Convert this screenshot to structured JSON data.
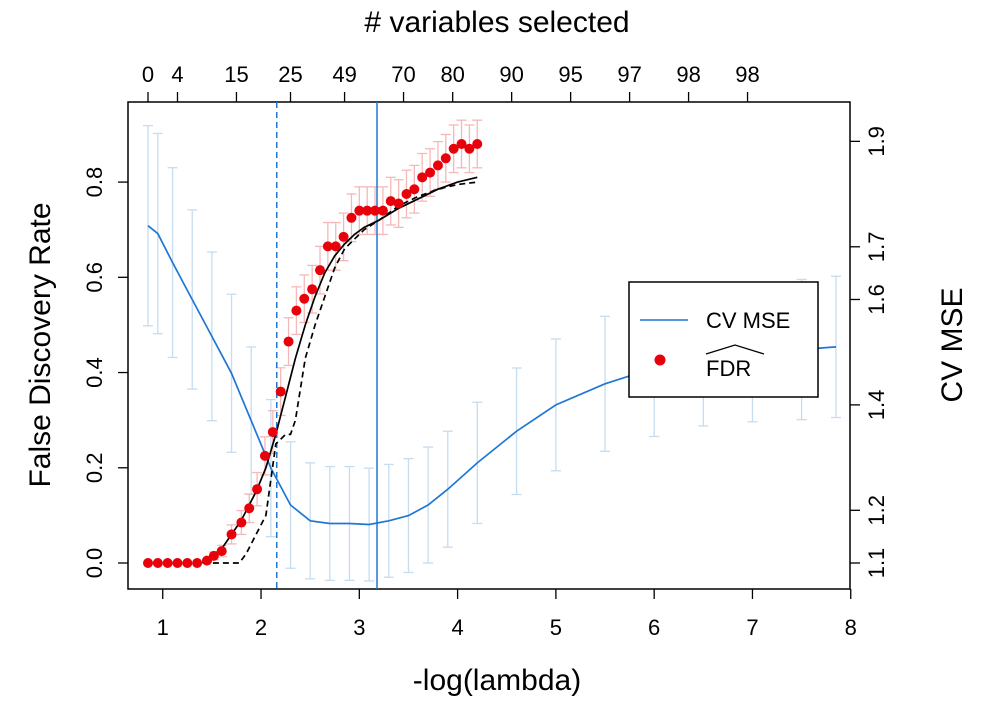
{
  "chart_data": {
    "type": "line",
    "axis_titles": {
      "bottom": "-log(lambda)",
      "top": "# variables selected",
      "left": "False Discovery Rate",
      "right": "CV MSE"
    },
    "x_range": [
      0.85,
      7.85
    ],
    "x_ticks": [
      1,
      2,
      3,
      4,
      5,
      6,
      7,
      8
    ],
    "y_left_range": [
      0.0,
      0.88
    ],
    "y_left_ticks": [
      0.0,
      0.2,
      0.4,
      0.6,
      0.8
    ],
    "y_right_range": [
      1.1,
      1.895
    ],
    "y_right_ticks": [
      1.1,
      1.2,
      1.4,
      1.6,
      1.7,
      1.9
    ],
    "top_ticks": [
      {
        "x": 0.85,
        "label": "0"
      },
      {
        "x": 1.15,
        "label": "4"
      },
      {
        "x": 1.75,
        "label": "15"
      },
      {
        "x": 2.3,
        "label": "25"
      },
      {
        "x": 2.85,
        "label": "49"
      },
      {
        "x": 3.45,
        "label": "70"
      },
      {
        "x": 3.95,
        "label": "80"
      },
      {
        "x": 4.55,
        "label": "90"
      },
      {
        "x": 5.15,
        "label": "95"
      },
      {
        "x": 5.75,
        "label": "97"
      },
      {
        "x": 6.35,
        "label": "98"
      },
      {
        "x": 6.95,
        "label": "98"
      }
    ],
    "vlines": [
      {
        "x": 2.16,
        "style": "dashed"
      },
      {
        "x": 3.18,
        "style": "solid"
      }
    ],
    "legend": {
      "position": "right",
      "entries": [
        {
          "label": "CV MSE",
          "kind": "line"
        },
        {
          "label": "FDR",
          "kind": "point",
          "hat": true
        }
      ]
    },
    "series": [
      {
        "name": "CV MSE",
        "axis": "right",
        "color": "#1f77d4",
        "errbar_color": "#c6dcef",
        "x": [
          0.85,
          0.95,
          1.1,
          1.3,
          1.5,
          1.7,
          1.9,
          2.1,
          2.3,
          2.5,
          2.7,
          2.9,
          3.1,
          3.3,
          3.5,
          3.7,
          3.9,
          4.2,
          4.6,
          5.0,
          5.5,
          6.0,
          6.5,
          7.0,
          7.5,
          7.85
        ],
        "y": [
          1.74,
          1.725,
          1.67,
          1.6,
          1.53,
          1.46,
          1.37,
          1.28,
          1.21,
          1.18,
          1.175,
          1.175,
          1.173,
          1.18,
          1.19,
          1.21,
          1.24,
          1.29,
          1.35,
          1.4,
          1.44,
          1.47,
          1.49,
          1.5,
          1.505,
          1.51
        ],
        "err": [
          0.19,
          0.19,
          0.18,
          0.17,
          0.16,
          0.15,
          0.14,
          0.13,
          0.12,
          0.11,
          0.108,
          0.108,
          0.107,
          0.107,
          0.108,
          0.11,
          0.11,
          0.115,
          0.12,
          0.125,
          0.128,
          0.13,
          0.13,
          0.132,
          0.133,
          0.134
        ]
      },
      {
        "name": "FDR",
        "axis": "left",
        "color": "#e8000b",
        "errbar_color": "#f5b8b8",
        "x": [
          0.85,
          0.95,
          1.05,
          1.15,
          1.25,
          1.35,
          1.45,
          1.52,
          1.6,
          1.7,
          1.8,
          1.88,
          1.96,
          2.04,
          2.12,
          2.2,
          2.28,
          2.36,
          2.44,
          2.52,
          2.6,
          2.68,
          2.76,
          2.84,
          2.92,
          3.0,
          3.08,
          3.16,
          3.24,
          3.32,
          3.4,
          3.48,
          3.56,
          3.64,
          3.72,
          3.8,
          3.88,
          3.96,
          4.04,
          4.12,
          4.2
        ],
        "y": [
          0.0,
          0.0,
          0.0,
          0.0,
          0.0,
          0.0,
          0.005,
          0.015,
          0.025,
          0.06,
          0.085,
          0.115,
          0.155,
          0.225,
          0.275,
          0.36,
          0.465,
          0.53,
          0.555,
          0.575,
          0.615,
          0.665,
          0.665,
          0.685,
          0.725,
          0.74,
          0.74,
          0.74,
          0.74,
          0.76,
          0.755,
          0.775,
          0.785,
          0.81,
          0.82,
          0.835,
          0.85,
          0.87,
          0.88,
          0.87,
          0.88
        ],
        "err": [
          0.0,
          0.0,
          0.0,
          0.0,
          0.0,
          0.0,
          0.003,
          0.008,
          0.012,
          0.02,
          0.025,
          0.03,
          0.035,
          0.04,
          0.045,
          0.05,
          0.05,
          0.05,
          0.05,
          0.05,
          0.05,
          0.05,
          0.05,
          0.05,
          0.05,
          0.05,
          0.05,
          0.05,
          0.05,
          0.05,
          0.05,
          0.05,
          0.05,
          0.05,
          0.05,
          0.05,
          0.05,
          0.05,
          0.05,
          0.05,
          0.05
        ]
      },
      {
        "name": "",
        "axis": "left",
        "style": "solid",
        "color": "#000000",
        "x": [
          1.4,
          1.6,
          1.8,
          1.95,
          2.05,
          2.15,
          2.25,
          2.35,
          2.45,
          2.55,
          2.65,
          2.75,
          2.85,
          2.95,
          3.05,
          3.2,
          3.4,
          3.6,
          3.8,
          4.0,
          4.2
        ],
        "y": [
          0.0,
          0.03,
          0.09,
          0.15,
          0.2,
          0.27,
          0.35,
          0.43,
          0.5,
          0.56,
          0.61,
          0.645,
          0.67,
          0.69,
          0.705,
          0.72,
          0.745,
          0.765,
          0.785,
          0.8,
          0.81
        ]
      },
      {
        "name": "",
        "axis": "left",
        "style": "dashed",
        "color": "#000000",
        "x": [
          0.9,
          1.5,
          1.78,
          1.85,
          1.95,
          2.05,
          2.15,
          2.25,
          2.3,
          2.35,
          2.45,
          2.55,
          2.65,
          2.75,
          2.85,
          2.95,
          3.05,
          3.2,
          3.4,
          3.6,
          3.8,
          4.0,
          4.2
        ],
        "y": [
          0.0,
          0.0,
          0.0,
          0.02,
          0.06,
          0.1,
          0.25,
          0.27,
          0.27,
          0.3,
          0.43,
          0.5,
          0.56,
          0.62,
          0.66,
          0.68,
          0.7,
          0.72,
          0.75,
          0.77,
          0.785,
          0.795,
          0.8
        ]
      }
    ]
  }
}
